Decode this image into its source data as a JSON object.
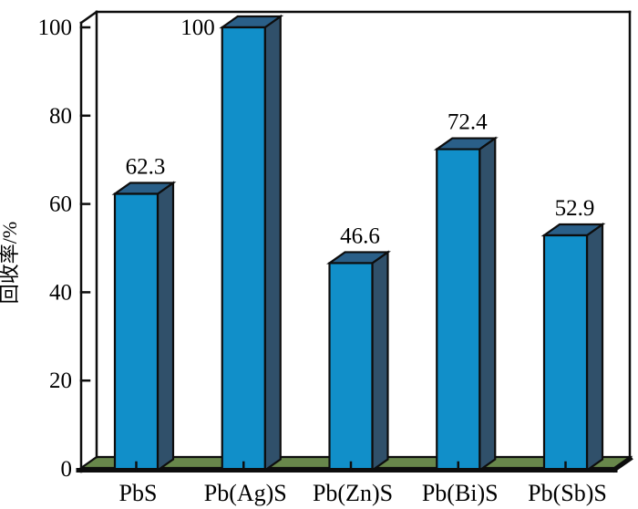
{
  "chart_data": {
    "type": "bar",
    "style": "3d-column",
    "title": "",
    "xlabel": "",
    "ylabel": "回收率/%",
    "categories": [
      "PbS",
      "Pb(Ag)S",
      "Pb(Zn)S",
      "Pb(Bi)S",
      "Pb(Sb)S"
    ],
    "values": [
      62.3,
      100,
      46.6,
      72.4,
      52.9
    ],
    "value_labels": [
      "62.3",
      "100",
      "46.6",
      "72.4",
      "52.9"
    ],
    "value_label_placement": [
      "above",
      "left",
      "above",
      "above",
      "above"
    ],
    "y_ticks": [
      0,
      20,
      40,
      60,
      80,
      100
    ],
    "y_tick_labels": [
      "0",
      "20",
      "40",
      "60",
      "80",
      "100"
    ],
    "ylim": [
      0,
      100
    ],
    "grid": false,
    "legend": "none",
    "colors": {
      "bar_front": "#118fc9",
      "bar_top": "#2a5f88",
      "bar_side": "#30506a",
      "floor": "#68874b",
      "outline": "#0d0d0d",
      "background": "#ffffff",
      "text": "#000000"
    }
  }
}
